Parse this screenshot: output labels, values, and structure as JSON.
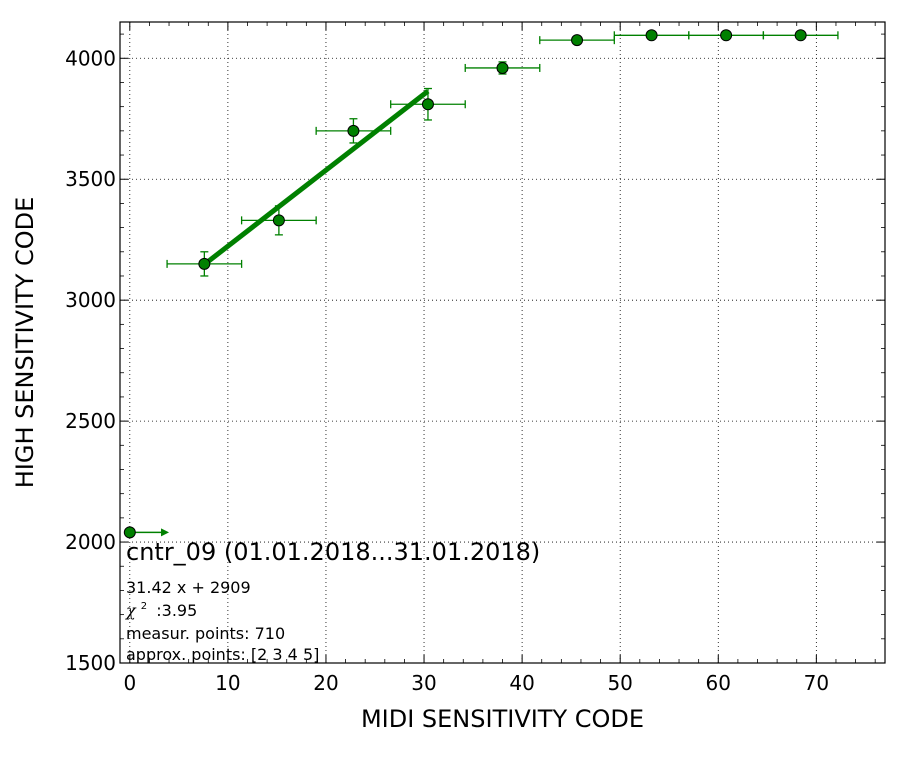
{
  "chart_data": {
    "type": "scatter",
    "title": "cntr_09 (01.01.2018...31.01.2018)",
    "xlabel": "MIDI SENSITIVITY CODE",
    "ylabel": "HIGH SENSITIVITY CODE",
    "xlim": [
      -1,
      77
    ],
    "ylim": [
      1500,
      4150
    ],
    "xticks": [
      0,
      10,
      20,
      30,
      40,
      50,
      60,
      70
    ],
    "yticks": [
      1500,
      2000,
      2500,
      3000,
      3500,
      4000
    ],
    "grid": true,
    "colors": {
      "series": "#008000",
      "marker_edge": "#000000",
      "axes": "#000000",
      "grid": "#000000"
    },
    "series": [
      {
        "points": [
          {
            "x": 7.6,
            "y": 3150,
            "xerr": 3.8,
            "yerr": 50
          },
          {
            "x": 15.2,
            "y": 3330,
            "xerr": 3.8,
            "yerr": 60
          },
          {
            "x": 22.8,
            "y": 3700,
            "xerr": 3.8,
            "yerr": 50
          },
          {
            "x": 30.4,
            "y": 3810,
            "xerr": 3.8,
            "yerr": 65
          },
          {
            "x": 38.0,
            "y": 3960,
            "xerr": 3.8,
            "yerr": 25
          },
          {
            "x": 45.6,
            "y": 4075,
            "xerr": 3.8,
            "yerr": 0
          },
          {
            "x": 53.2,
            "y": 4095,
            "xerr": 3.8,
            "yerr": 0
          },
          {
            "x": 60.8,
            "y": 4095,
            "xerr": 3.8,
            "yerr": 0
          },
          {
            "x": 68.4,
            "y": 4095,
            "xerr": 3.8,
            "yerr": 0
          }
        ]
      }
    ],
    "offscale_point": {
      "x": 0,
      "y": 2040,
      "arrow_to_x": 4
    },
    "fit": {
      "slope": 31.42,
      "intercept": 2909,
      "x_range": [
        7.6,
        30.4
      ]
    },
    "annotations": {
      "equation": "31.42 x + 2909",
      "chi2_symbol": "χ",
      "chi2_sup": "2",
      "chi2_value": ":3.95",
      "measur_points": "measur. points: 710",
      "approx_points": "approx. points: [2 3 4 5]"
    }
  }
}
